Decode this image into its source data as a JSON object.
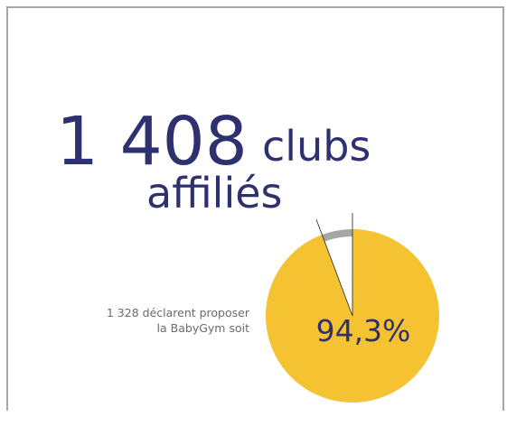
{
  "chart_data": {
    "type": "pie",
    "headline": {
      "number": "1 408",
      "unit": "clubs",
      "unit2": "affiliés"
    },
    "caption": [
      "1 328 déclarent proposer",
      "la BabyGym soit"
    ],
    "values": [
      94.3,
      5.7
    ],
    "value_labels": [
      "94,3%",
      null
    ],
    "colors": [
      "#f5c232",
      "#ffffff"
    ],
    "rim_color": "#a6a6a6"
  }
}
